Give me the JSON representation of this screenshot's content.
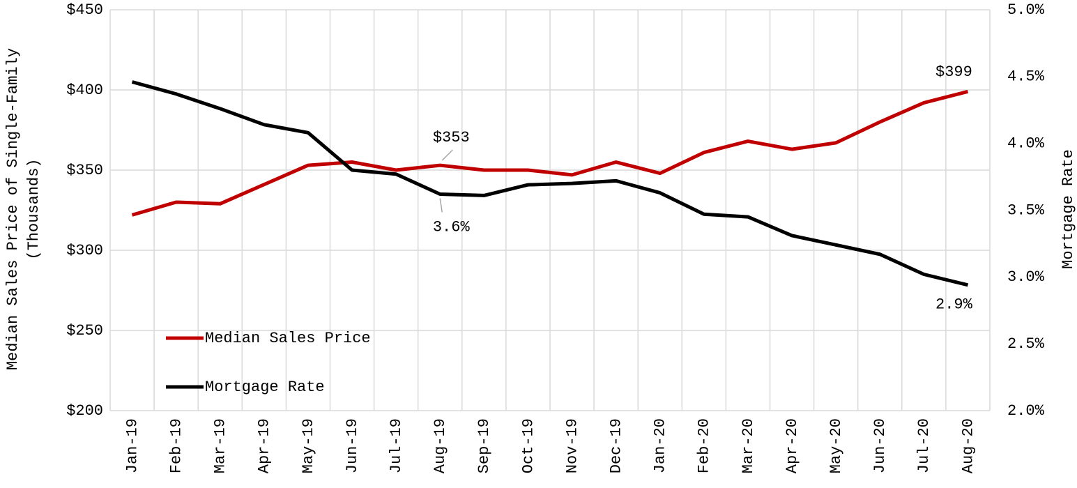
{
  "chart_data": {
    "type": "line",
    "ylabel": [
      "Median Sales Price of Single-Family",
      "(Thousands)"
    ],
    "y2label": "Mortgage Rate",
    "categories": [
      "Jan-19",
      "Feb-19",
      "Mar-19",
      "Apr-19",
      "May-19",
      "Jun-19",
      "Jul-19",
      "Aug-19",
      "Sep-19",
      "Oct-19",
      "Nov-19",
      "Dec-19",
      "Jan-20",
      "Feb-20",
      "Mar-20",
      "Apr-20",
      "May-20",
      "Jun-20",
      "Jul-20",
      "Aug-20"
    ],
    "series": [
      {
        "name": "Median Sales Price",
        "color": "#c00000",
        "values": [
          322,
          330,
          329,
          341,
          353,
          355,
          350,
          353,
          350,
          350,
          347,
          355,
          348,
          361,
          368,
          363,
          367,
          380,
          392,
          399
        ],
        "value_labels": [
          null,
          null,
          null,
          null,
          null,
          null,
          null,
          "$353",
          null,
          null,
          null,
          null,
          null,
          null,
          null,
          null,
          null,
          null,
          null,
          "$399"
        ]
      },
      {
        "name": "Mortgage Rate",
        "color": "#000000",
        "axis": "y2",
        "values": [
          4.46,
          4.37,
          4.26,
          4.14,
          4.08,
          3.8,
          3.77,
          3.62,
          3.61,
          3.69,
          3.7,
          3.72,
          3.63,
          3.47,
          3.45,
          3.31,
          3.24,
          3.17,
          3.02,
          2.94
        ],
        "value_labels": [
          null,
          null,
          null,
          null,
          null,
          null,
          null,
          "3.6%",
          null,
          null,
          null,
          null,
          null,
          null,
          null,
          null,
          null,
          null,
          null,
          "2.9%"
        ]
      }
    ],
    "ylim": [
      200,
      450
    ],
    "yticks": [
      {
        "value": 200,
        "label": "$200"
      },
      {
        "value": 250,
        "label": "$250"
      },
      {
        "value": 300,
        "label": "$300"
      },
      {
        "value": 350,
        "label": "$350"
      },
      {
        "value": 400,
        "label": "$400"
      },
      {
        "value": 450,
        "label": "$450"
      }
    ],
    "y2lim": [
      2.0,
      5.0
    ],
    "y2ticks": [
      {
        "value": 2.0,
        "label": "2.0%"
      },
      {
        "value": 2.5,
        "label": "2.5%"
      },
      {
        "value": 3.0,
        "label": "3.0%"
      },
      {
        "value": 3.5,
        "label": "3.5%"
      },
      {
        "value": 4.0,
        "label": "4.0%"
      },
      {
        "value": 4.5,
        "label": "4.5%"
      },
      {
        "value": 5.0,
        "label": "5.0%"
      }
    ],
    "grid": true,
    "legend": "lower left"
  }
}
